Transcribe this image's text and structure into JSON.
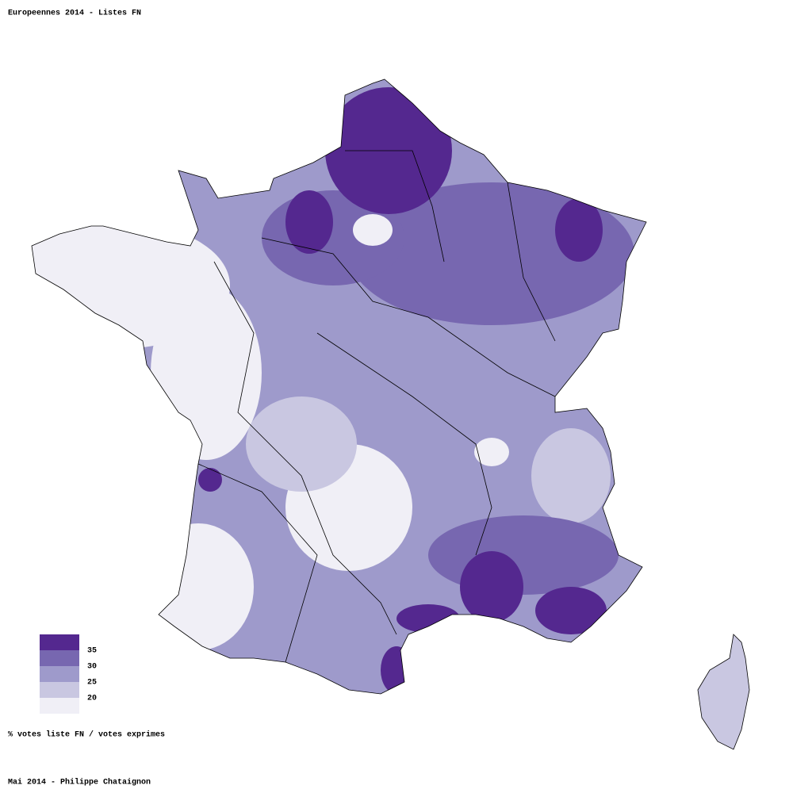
{
  "title": "Europeennes 2014 - Listes FN",
  "legend": {
    "colors": [
      "#54288f",
      "#7767b0",
      "#9e9acb",
      "#c9c7e1",
      "#f0eff6"
    ],
    "thresholds": [
      35,
      30,
      25,
      20
    ]
  },
  "caption": "% votes liste FN / votes exprimes",
  "credit": "Mai 2014 - Philippe Chataignon"
}
